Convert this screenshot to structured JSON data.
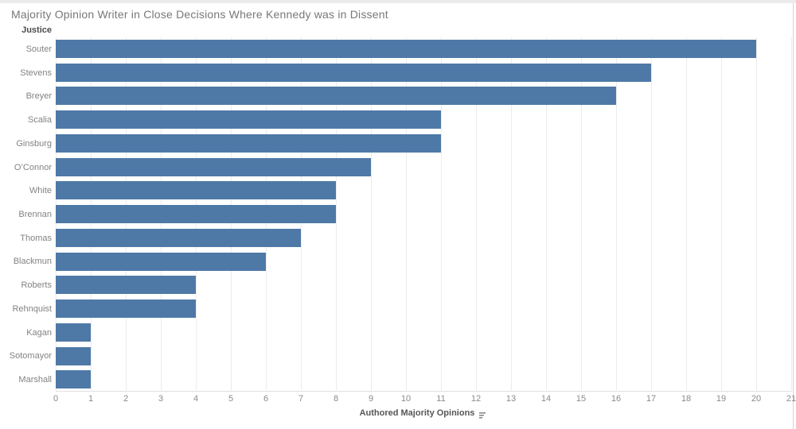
{
  "title": "Majority Opinion Writer in Close Decisions Where Kennedy was in Dissent",
  "row_header": "Justice",
  "x_axis": {
    "label": "Authored Majority Opinions",
    "sort_icon": "sort-descending"
  },
  "chart_data": {
    "type": "bar",
    "orientation": "horizontal",
    "title": "Majority Opinion Writer in Close Decisions Where Kennedy was in Dissent",
    "xlabel": "Authored Majority Opinions",
    "ylabel": "Justice",
    "categories": [
      "Souter",
      "Stevens",
      "Breyer",
      "Scalia",
      "Ginsburg",
      "O’Connor",
      "White",
      "Brennan",
      "Thomas",
      "Blackmun",
      "Roberts",
      "Rehnquist",
      "Kagan",
      "Sotomayor",
      "Marshall"
    ],
    "values": [
      20,
      17,
      16,
      11,
      11,
      9,
      8,
      8,
      7,
      6,
      4,
      4,
      1,
      1,
      1
    ],
    "xlim": [
      0,
      21
    ],
    "xticks": [
      0,
      1,
      2,
      3,
      4,
      5,
      6,
      7,
      8,
      9,
      10,
      11,
      12,
      13,
      14,
      15,
      16,
      17,
      18,
      19,
      20,
      21
    ],
    "grid": "vertical",
    "legend": "none",
    "sort": "descending"
  },
  "colors": {
    "bar": "#4e79a7",
    "title_text": "#787878",
    "header_text": "#4b4b4b",
    "label_text": "#838383",
    "tick_text": "#8a8a8a",
    "gridline": "#ececec",
    "axis_line": "#e0e0e0",
    "top_strip": "#ebebeb",
    "window_border": "#d4d4d4",
    "icon": "#8a8a8a"
  }
}
